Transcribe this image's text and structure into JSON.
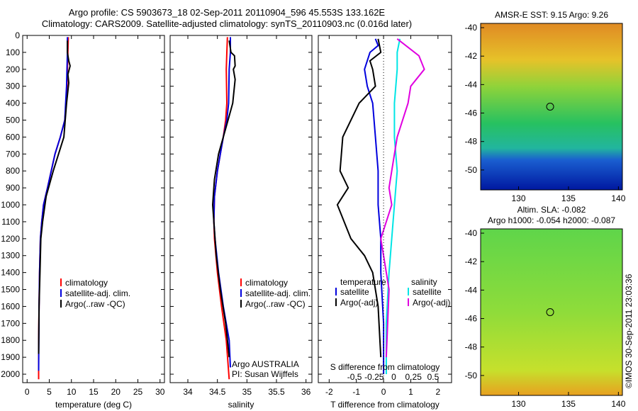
{
  "header": {
    "line1": "Argo profile: CS 5903673_18 02-Sep-2011 20110904_596 45.553S 133.162E",
    "line2": "Climatology: CARS2009. Satellite-adjusted climatology: synTS_20110903.nc (0.016d later)"
  },
  "stamp": "©IMOS 30-Sep-2011 23:03:36",
  "colors": {
    "climatology": "#ff0000",
    "satellite": "#0000dd",
    "argo": "#000000",
    "sal_satellite": "#00e5e5",
    "sal_argo": "#e000e0"
  },
  "chart_data": [
    {
      "type": "line",
      "xlabel": "temperature (deg C)",
      "ylim": [
        2050,
        0
      ],
      "xlim": [
        -1,
        31
      ],
      "xticks": [
        0,
        5,
        10,
        15,
        20,
        25,
        30
      ],
      "yticks": [
        0,
        100,
        200,
        300,
        400,
        500,
        600,
        700,
        800,
        900,
        1000,
        1100,
        1200,
        1300,
        1400,
        1500,
        1600,
        1700,
        1800,
        1900,
        2000
      ],
      "legend": [
        "climatology",
        "satellite-adj. clim.",
        "Argo(..raw -QC)"
      ],
      "series": [
        {
          "name": "climatology",
          "color_key": "climatology",
          "x": [
            9.3,
            9.2,
            9.1,
            9.0,
            8.8,
            8.5,
            7.5,
            6.3,
            4.6,
            3.7,
            3.3,
            3.0,
            2.8,
            2.7,
            2.6,
            2.6
          ],
          "y": [
            10,
            100,
            200,
            300,
            400,
            500,
            600,
            700,
            900,
            1000,
            1100,
            1200,
            1400,
            1600,
            1800,
            2030
          ]
        },
        {
          "name": "satellite-adj. clim.",
          "color_key": "satellite",
          "x": [
            9.1,
            9.1,
            9.0,
            8.9,
            8.7,
            8.5,
            7.5,
            6.3,
            4.6,
            3.7,
            3.3,
            3.0,
            2.8,
            2.7,
            2.6
          ],
          "y": [
            10,
            100,
            200,
            300,
            400,
            500,
            600,
            700,
            900,
            1000,
            1100,
            1200,
            1400,
            1600,
            1980
          ]
        },
        {
          "name": "Argo(..raw -QC)",
          "color_key": "argo",
          "x": [
            9.1,
            9.1,
            9.4,
            9.7,
            9.2,
            9.4,
            8.9,
            8.6,
            8.3,
            7.1,
            5.9,
            4.3,
            3.5,
            3.1,
            2.9,
            2.7,
            2.6
          ],
          "y": [
            30,
            100,
            150,
            180,
            230,
            280,
            400,
            500,
            600,
            700,
            800,
            950,
            1100,
            1200,
            1400,
            1600,
            1880
          ]
        }
      ]
    },
    {
      "type": "line",
      "xlabel": "salinity",
      "ylim": [
        2050,
        0
      ],
      "xlim": [
        33.7,
        36.1
      ],
      "xticks": [
        34,
        34.5,
        35,
        35.5,
        36
      ],
      "legend": [
        "climatology",
        "satellite-adj. clim.",
        "Argo(..raw -QC)"
      ],
      "annotations": [
        "Argo AUSTRALIA",
        "PI: Susan Wijffels"
      ],
      "series": [
        {
          "name": "climatology",
          "color_key": "climatology",
          "x": [
            34.67,
            34.66,
            34.65,
            34.66,
            34.64,
            34.6,
            34.55,
            34.5,
            34.45,
            34.44,
            34.45,
            34.5,
            34.57,
            34.65,
            34.7
          ],
          "y": [
            10,
            100,
            200,
            400,
            500,
            600,
            700,
            800,
            950,
            1100,
            1200,
            1400,
            1600,
            1800,
            2030
          ]
        },
        {
          "name": "satellite-adj. clim.",
          "color_key": "satellite",
          "x": [
            34.72,
            34.72,
            34.7,
            34.69,
            34.66,
            34.6,
            34.55,
            34.5,
            34.45,
            34.44,
            34.46,
            34.52,
            34.6,
            34.7,
            34.72
          ],
          "y": [
            10,
            100,
            200,
            400,
            500,
            600,
            700,
            800,
            950,
            1100,
            1200,
            1400,
            1600,
            1800,
            1960
          ]
        },
        {
          "name": "Argo(..raw -QC)",
          "color_key": "argo",
          "x": [
            34.7,
            34.73,
            34.79,
            34.8,
            34.77,
            34.8,
            34.76,
            34.68,
            34.6,
            34.52,
            34.45,
            34.42,
            34.44,
            34.48,
            34.55,
            34.64,
            34.7
          ],
          "y": [
            30,
            100,
            120,
            180,
            200,
            260,
            400,
            500,
            600,
            700,
            850,
            1000,
            1100,
            1300,
            1500,
            1700,
            1900
          ]
        }
      ]
    },
    {
      "type": "line",
      "xlabel": "T difference from climatology",
      "xlabel_top": "S difference from climatology",
      "ylim": [
        2050,
        0
      ],
      "xlim": [
        -2.4,
        2.5
      ],
      "xticks": [
        -2,
        -1,
        0,
        1,
        2
      ],
      "xticks_top": [
        -0.5,
        -0.25,
        0,
        0.25,
        0.5
      ],
      "xticklabels_top": [
        "-0.5",
        "-0.25",
        "0",
        "0.25",
        "0.5"
      ],
      "legend_temperature": [
        "temperature",
        "satellite",
        "Argo(-adj)"
      ],
      "legend_salinity": [
        "salinity",
        "satellite",
        "Argo(-adj)"
      ],
      "series": [
        {
          "name": "temperature satellite",
          "color_key": "satellite",
          "x": [
            -0.3,
            -0.2,
            -0.5,
            -0.7,
            -0.6,
            -0.4,
            -0.3,
            -0.2,
            -0.2,
            -0.1,
            -0.1,
            0,
            0
          ],
          "y": [
            20,
            60,
            100,
            200,
            300,
            400,
            600,
            800,
            1000,
            1200,
            1400,
            1700,
            2000
          ]
        },
        {
          "name": "temperature Argo(-adj)",
          "color_key": "argo",
          "x": [
            -0.2,
            -0.1,
            -0.5,
            -0.4,
            -0.3,
            -0.9,
            -1.5,
            -1.6,
            -1.3,
            -1.7,
            -1.2,
            -0.7,
            -0.4,
            -0.2,
            -0.1
          ],
          "y": [
            20,
            100,
            150,
            200,
            300,
            400,
            600,
            800,
            900,
            1000,
            1200,
            1300,
            1400,
            1600,
            1900
          ]
        },
        {
          "name": "salinity satellite",
          "color_key": "sal_satellite",
          "x": [
            0.6,
            0.5,
            0.5,
            0.4,
            0.4,
            0.5,
            0.4,
            0.3,
            0.2,
            0.1,
            0.1
          ],
          "y": [
            20,
            100,
            200,
            400,
            600,
            800,
            1000,
            1200,
            1400,
            1700,
            2000
          ]
        },
        {
          "name": "salinity Argo(-adj)",
          "color_key": "sal_argo",
          "x": [
            0.5,
            1.3,
            1.5,
            1.0,
            0.9,
            0.5,
            0.3,
            0.2,
            0.3,
            -0.1,
            0.2,
            0.1
          ],
          "y": [
            20,
            120,
            200,
            300,
            400,
            600,
            800,
            900,
            1000,
            1200,
            1500,
            1900
          ]
        }
      ]
    },
    {
      "type": "heatmap",
      "title": "AMSR-E SST: 9.15 Argo: 9.26",
      "xticks": [
        130,
        135,
        140
      ],
      "yticks": [
        -40,
        -42,
        -44,
        -46,
        -48,
        -50
      ],
      "xlim": [
        126.2,
        140.4
      ],
      "ylim": [
        -51.4,
        -39.7
      ],
      "marker": {
        "lon": 133.16,
        "lat": -45.55
      }
    },
    {
      "type": "heatmap",
      "title_line1": "Altim. SLA: -0.082",
      "title_line2": "Argo h1000: -0.054 h2000: -0.087",
      "xticks": [
        130,
        135,
        140
      ],
      "yticks": [
        -40,
        -42,
        -44,
        -46,
        -48,
        -50
      ],
      "xlim": [
        126.2,
        140.4
      ],
      "ylim": [
        -51.4,
        -39.7
      ],
      "marker": {
        "lon": 133.16,
        "lat": -45.55
      }
    }
  ]
}
